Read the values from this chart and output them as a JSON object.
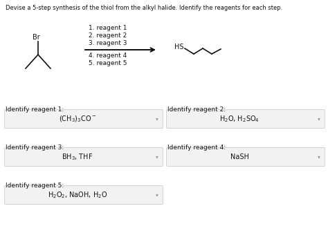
{
  "title": "Devise a 5-step synthesis of the thiol from the alkyl halide. Identify the reagents for each step.",
  "bg_color": "#ffffff",
  "text_color": "#111111",
  "reagents_above": [
    "1. reagent 1",
    "2. reagent 2",
    "3. reagent 3"
  ],
  "reagents_below": [
    "4. reagent 4",
    "5. reagent 5"
  ],
  "reagent_answers": [
    {
      "label": "Identify reagent 1:",
      "answer": "(CH$_3$)$_3$CO$^-$",
      "col": 0,
      "row": 0
    },
    {
      "label": "Identify reagent 2:",
      "answer": "H$_2$O, H$_2$SO$_4$",
      "col": 1,
      "row": 0
    },
    {
      "label": "Identify reagent 3:",
      "answer": "BH$_3$, THF",
      "col": 0,
      "row": 1
    },
    {
      "label": "Identify reagent 4:",
      "answer": "NaSH",
      "col": 1,
      "row": 1
    },
    {
      "label": "Identify reagent 5:",
      "answer": "H$_2$O$_2$, NaOH, H$_2$O",
      "col": 0,
      "row": 2
    }
  ],
  "box_facecolor": "#f2f2f2",
  "box_edgecolor": "#cccccc",
  "arrow_color": "#111111",
  "br_label": "Br",
  "hs_label": "HS"
}
